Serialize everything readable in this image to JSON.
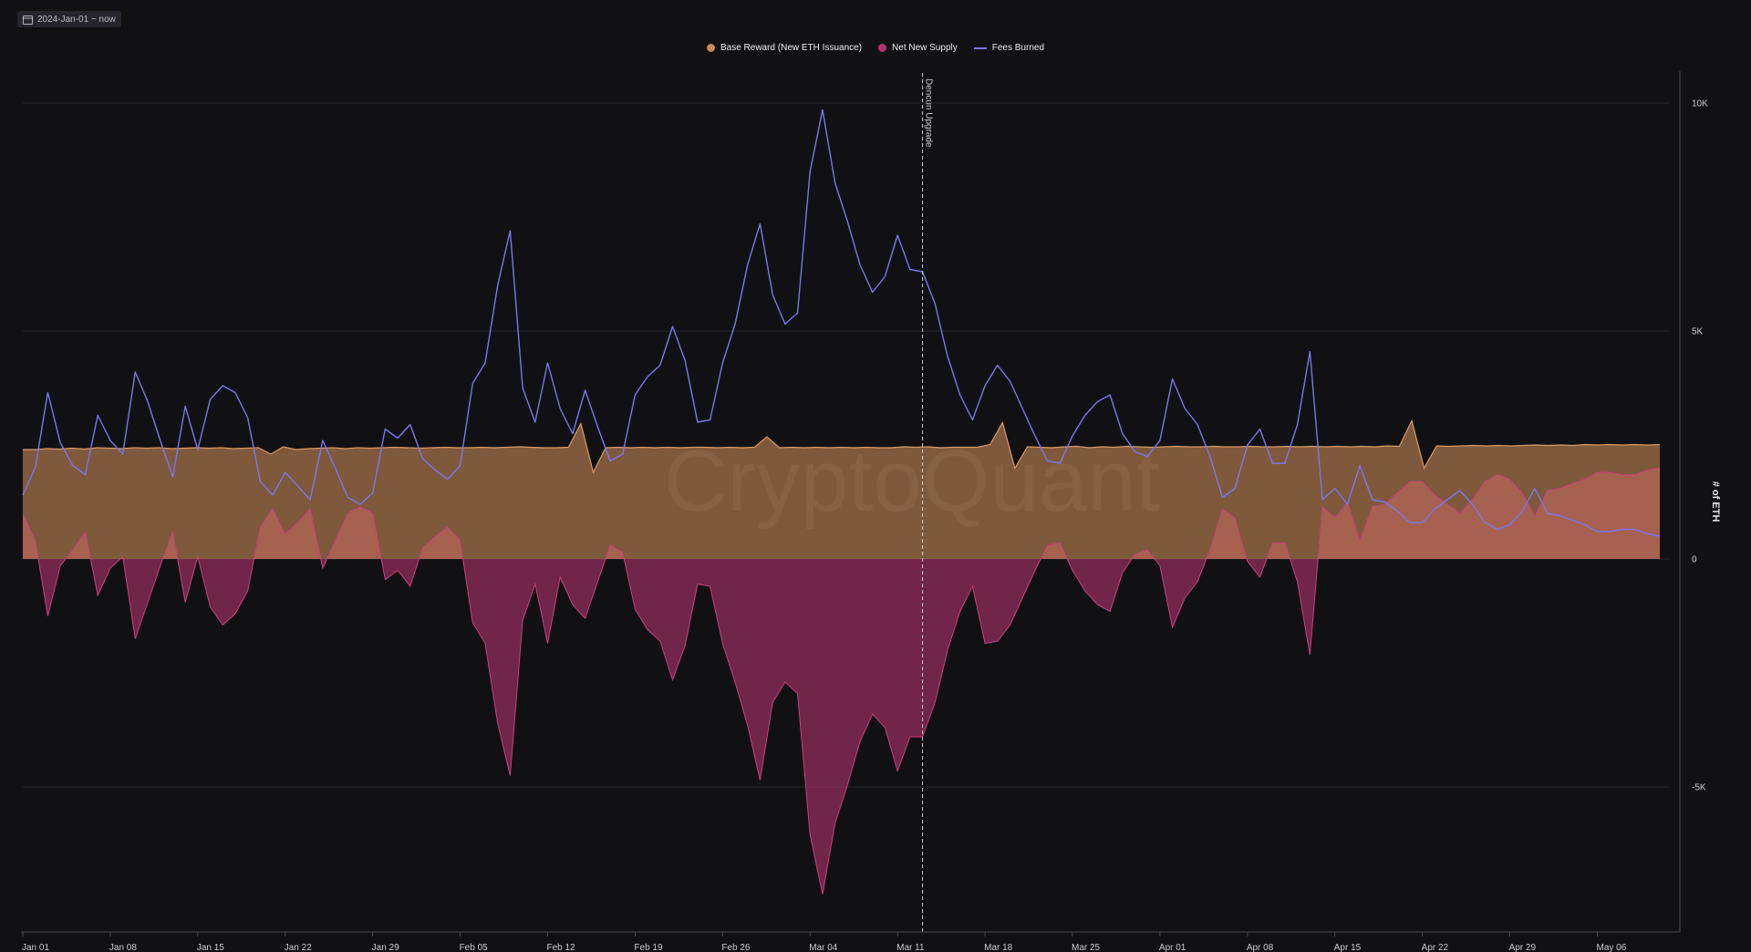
{
  "date_range": "2024-Jan-01 ~ now",
  "watermark": "CryptoQuant",
  "colors": {
    "base_reward": "#c98a57",
    "net_new_supply": "#b3346b",
    "fees_burned": "#7b76e8",
    "background": "#111114"
  },
  "chart_data": {
    "type": "area",
    "title": "",
    "ylabel": "# of ETH",
    "ylim": [
      -8200,
      10500
    ],
    "yticks": [
      10000,
      5000,
      0,
      -5000
    ],
    "ytick_labels": [
      "10K",
      "5K",
      "0",
      "-5K"
    ],
    "xtick_labels": [
      "Jan 01",
      "Jan 08",
      "Jan 15",
      "Jan 22",
      "Jan 29",
      "Feb 05",
      "Feb 12",
      "Feb 19",
      "Feb 26",
      "Mar 04",
      "Mar 11",
      "Mar 18",
      "Mar 25",
      "Apr 01",
      "Apr 08",
      "Apr 15",
      "Apr 22",
      "Apr 29",
      "May 06"
    ],
    "x_start": "2024-01-01",
    "x_end": "2024-05-11",
    "annotation": {
      "label": "Dencun Upgrade",
      "date": "2024-03-13"
    },
    "legend": [
      "Base Reward (New ETH Issuance)",
      "Net New Supply",
      "Fees Burned"
    ],
    "series": [
      {
        "name": "Fees Burned",
        "type": "line",
        "values": [
          1400,
          2000,
          3650,
          2550,
          2050,
          1850,
          3150,
          2600,
          2300,
          4100,
          3450,
          2600,
          1800,
          3350,
          2400,
          3500,
          3800,
          3650,
          3100,
          1700,
          1400,
          1900,
          1600,
          1300,
          2600,
          2000,
          1350,
          1200,
          1450,
          2850,
          2650,
          2950,
          2200,
          1950,
          1750,
          2050,
          3850,
          4300,
          6000,
          7200,
          3750,
          3000,
          4300,
          3300,
          2750,
          3700,
          2900,
          2150,
          2300,
          3600,
          4000,
          4250,
          5100,
          4350,
          3000,
          3050,
          4300,
          5150,
          6450,
          7350,
          5800,
          5150,
          5400,
          8500,
          9850,
          8250,
          7400,
          6450,
          5850,
          6200,
          7100,
          6350,
          6300,
          5600,
          4450,
          3600,
          3050,
          3800,
          4250,
          3900,
          3300,
          2700,
          2150,
          2100,
          2700,
          3150,
          3450,
          3600,
          2750,
          2350,
          2250,
          2600,
          3950,
          3300,
          2950,
          2250,
          1350,
          1550,
          2500,
          2850,
          2100,
          2100,
          2950,
          4550,
          1300,
          1550,
          1200,
          2050,
          1300,
          1250,
          1050,
          800,
          800,
          1100,
          1300,
          1500,
          1200,
          800,
          650,
          750,
          1050,
          1550,
          1000,
          950,
          850,
          750,
          600,
          600,
          650,
          650,
          550,
          500
        ]
      },
      {
        "name": "Base Reward (New ETH Issuance)",
        "type": "area",
        "values": [
          2400,
          2400,
          2420,
          2410,
          2430,
          2410,
          2440,
          2430,
          2420,
          2440,
          2430,
          2440,
          2420,
          2430,
          2440,
          2430,
          2440,
          2420,
          2430,
          2440,
          2300,
          2460,
          2400,
          2420,
          2430,
          2440,
          2420,
          2440,
          2430,
          2440,
          2450,
          2440,
          2430,
          2440,
          2450,
          2440,
          2440,
          2450,
          2440,
          2450,
          2460,
          2450,
          2440,
          2440,
          2450,
          2970,
          1900,
          2440,
          2450,
          2440,
          2450,
          2440,
          2450,
          2440,
          2450,
          2450,
          2440,
          2450,
          2440,
          2450,
          2680,
          2440,
          2450,
          2440,
          2450,
          2440,
          2450,
          2440,
          2450,
          2440,
          2440,
          2460,
          2450,
          2460,
          2440,
          2450,
          2450,
          2450,
          2510,
          2990,
          1990,
          2460,
          2450,
          2440,
          2460,
          2470,
          2440,
          2460,
          2450,
          2470,
          2460,
          2450,
          2460,
          2470,
          2460,
          2460,
          2470,
          2460,
          2460,
          2470,
          2460,
          2460,
          2470,
          2460,
          2470,
          2460,
          2470,
          2460,
          2470,
          2460,
          2480,
          2470,
          3030,
          1990,
          2480,
          2470,
          2480,
          2490,
          2480,
          2490,
          2480,
          2490,
          2500,
          2490,
          2500,
          2490,
          2510,
          2500,
          2510,
          2500,
          2510,
          2500,
          2510
        ]
      },
      {
        "name": "Net New Supply",
        "type": "area",
        "values": [
          1000,
          400,
          -1250,
          -150,
          200,
          600,
          -800,
          -200,
          50,
          -1750,
          -950,
          -150,
          600,
          -950,
          50,
          -1050,
          -1450,
          -1200,
          -700,
          700,
          1100,
          550,
          800,
          1100,
          -200,
          400,
          1000,
          1150,
          1000,
          -450,
          -250,
          -600,
          250,
          500,
          700,
          400,
          -1400,
          -1850,
          -3600,
          -4750,
          -1350,
          -550,
          -1850,
          -400,
          -1000,
          -1300,
          -500,
          300,
          150,
          -1100,
          -1550,
          -1800,
          -2650,
          -1900,
          -550,
          -600,
          -1850,
          -2700,
          -3650,
          -4850,
          -3150,
          -2700,
          -2950,
          -6050,
          -7350,
          -5800,
          -4950,
          -4000,
          -3400,
          -3700,
          -4650,
          -3900,
          -3900,
          -3150,
          -2000,
          -1150,
          -600,
          -1850,
          -1800,
          -1450,
          -850,
          -250,
          300,
          350,
          -250,
          -700,
          -1000,
          -1150,
          -300,
          100,
          200,
          -150,
          -1500,
          -850,
          -500,
          200,
          1100,
          900,
          -50,
          -400,
          350,
          350,
          -500,
          -2100,
          1150,
          900,
          1250,
          400,
          1150,
          1200,
          1450,
          1700,
          1700,
          1400,
          1200,
          1000,
          1300,
          1700,
          1850,
          1750,
          1450,
          950,
          1500,
          1550,
          1650,
          1750,
          1900,
          1900,
          1850,
          1850,
          1950,
          2000
        ]
      }
    ]
  }
}
